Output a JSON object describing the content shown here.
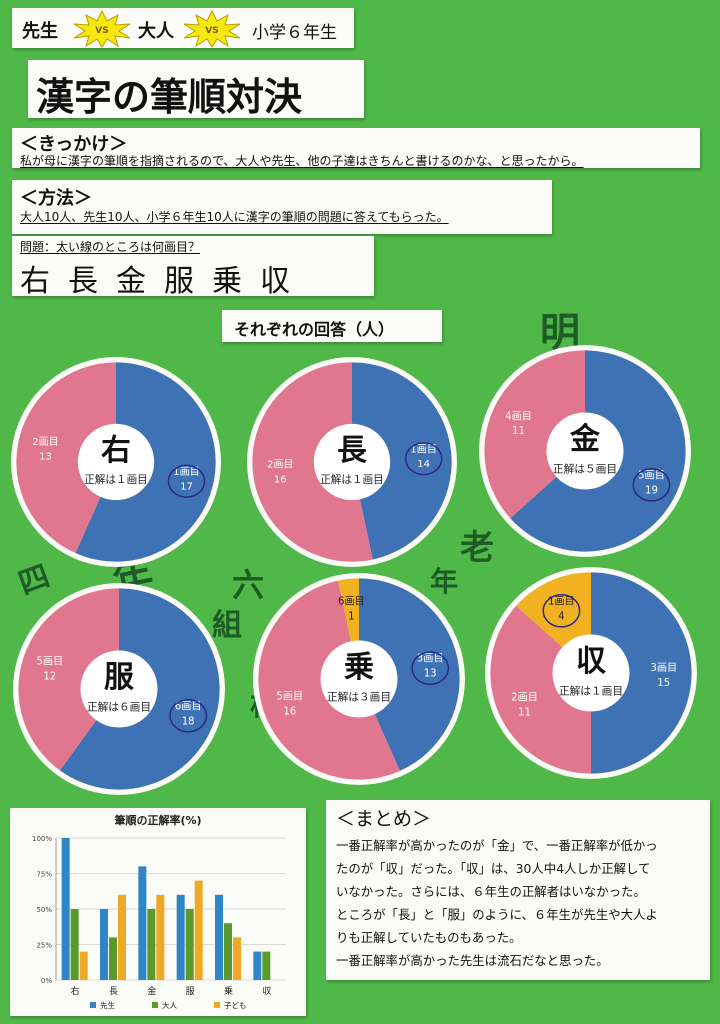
{
  "header": {
    "teacher": "先生",
    "vs1": "VS",
    "adult": "大人",
    "vs2": "VS",
    "grade6": "小学６年生"
  },
  "title": "漢字の筆順対決",
  "motivation": {
    "heading": "＜きっかけ＞",
    "text": "私が母に漢字の筆順を指摘されるので、大人や先生、他の子達はきちんと書けるのかな、と思ったから。"
  },
  "method": {
    "heading": "＜方法＞",
    "text": "大人10人、先生10人、小学６年生10人に漢字の筆順の問題に答えてもらった。",
    "question": "問題：太い線のところは何画目？",
    "kanji_list": [
      "右",
      "長",
      "金",
      "服",
      "乗",
      "収"
    ]
  },
  "answers_heading": "それぞれの回答（人）",
  "pies": [
    {
      "kanji": "右",
      "correct": "正解は１画目",
      "slices": [
        {
          "label": "1画目",
          "count": "17",
          "value": 17,
          "color": "#3f72b5",
          "circled": true
        },
        {
          "label": "2画目",
          "count": "13",
          "value": 13,
          "color": "#e0778f",
          "circled": false
        }
      ]
    },
    {
      "kanji": "長",
      "correct": "正解は１画目",
      "slices": [
        {
          "label": "1画目",
          "count": "14",
          "value": 14,
          "color": "#3f72b5",
          "circled": true
        },
        {
          "label": "2画目",
          "count": "16",
          "value": 16,
          "color": "#e0778f",
          "circled": false
        }
      ]
    },
    {
      "kanji": "金",
      "correct": "正解は５画目",
      "slices": [
        {
          "label": "5画目",
          "count": "19",
          "value": 19,
          "color": "#3f72b5",
          "circled": true
        },
        {
          "label": "4画目",
          "count": "11",
          "value": 11,
          "color": "#e0778f",
          "circled": false
        }
      ]
    },
    {
      "kanji": "服",
      "correct": "正解は６画目",
      "slices": [
        {
          "label": "6画目",
          "count": "18",
          "value": 18,
          "color": "#3f72b5",
          "circled": true
        },
        {
          "label": "5画目",
          "count": "12",
          "value": 12,
          "color": "#e0778f",
          "circled": false
        }
      ]
    },
    {
      "kanji": "乗",
      "correct": "正解は３画目",
      "slices": [
        {
          "label": "3画目",
          "count": "13",
          "value": 13,
          "color": "#3f72b5",
          "circled": true
        },
        {
          "label": "5画目",
          "count": "16",
          "value": 16,
          "color": "#e0778f",
          "circled": false
        },
        {
          "label": "6画目",
          "count": "1",
          "value": 1,
          "color": "#f1b121",
          "circled": false
        }
      ]
    },
    {
      "kanji": "収",
      "correct": "正解は１画目",
      "slices": [
        {
          "label": "3画目",
          "count": "15",
          "value": 15,
          "color": "#3f72b5",
          "circled": false
        },
        {
          "label": "2画目",
          "count": "11",
          "value": 11,
          "color": "#e0778f",
          "circled": false
        },
        {
          "label": "1画目",
          "count": "4",
          "value": 4,
          "color": "#f1b121",
          "circled": true
        }
      ]
    }
  ],
  "chart_data": {
    "type": "bar",
    "title": "筆順の正解率(%)",
    "categories": [
      "右",
      "長",
      "金",
      "服",
      "乗",
      "収"
    ],
    "ylim": [
      0,
      100
    ],
    "yticks": [
      "0%",
      "25%",
      "50%",
      "75%",
      "100%"
    ],
    "grid": true,
    "legend_position": "bottom",
    "series": [
      {
        "name": "先生",
        "color": "#2e86c8",
        "values": [
          100,
          50,
          80,
          60,
          60,
          20
        ]
      },
      {
        "name": "大人",
        "color": "#5a9a2a",
        "values": [
          50,
          30,
          50,
          50,
          40,
          20
        ]
      },
      {
        "name": "子ども",
        "color": "#f0a826",
        "values": [
          20,
          60,
          60,
          70,
          30,
          0
        ]
      }
    ]
  },
  "summary": {
    "heading": "＜まとめ＞",
    "lines": [
      "一番正解率が高かったのが「金」で、一番正解率が低かっ",
      "たのが「収」だった。「収」は、30人中4人しか正解して",
      "いなかった。さらには、６年生の正解者はいなかった。",
      "ところが「長」と「服」のように、６年生が先生や大人よ",
      "りも正解していたものもあった。",
      "一番正解率が高かった先生は流石だなと思った。"
    ]
  }
}
